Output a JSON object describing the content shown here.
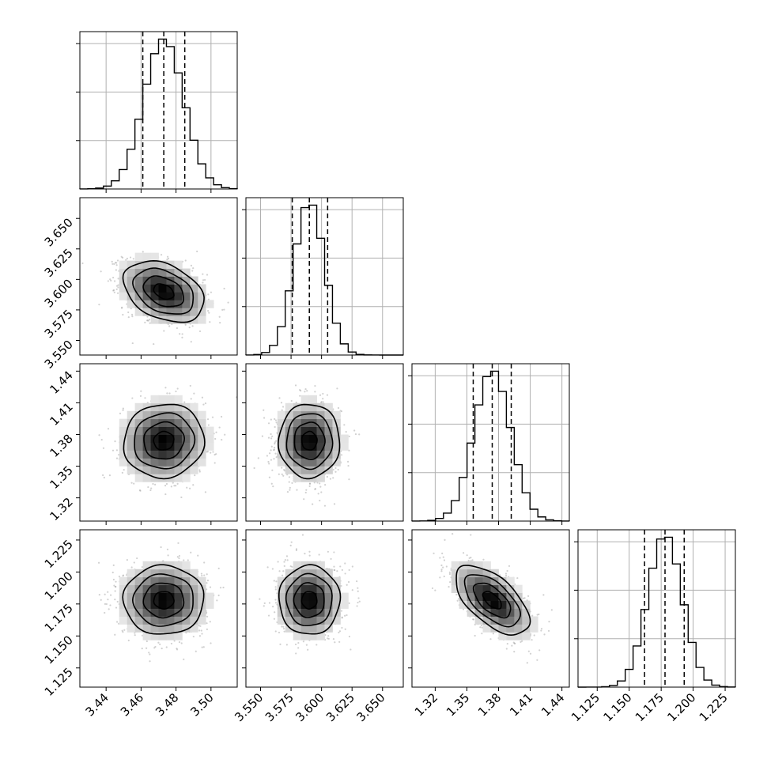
{
  "figure": {
    "type": "corner-plot",
    "background": "#ffffff"
  },
  "colors": {
    "frame": "#000000",
    "grid": "#b0b0b0",
    "hist": "#000000",
    "contour": "#000000",
    "scatter": "#9a9a9a",
    "quantile": "#000000"
  },
  "chart_data": {
    "type": "corner",
    "parameters": [
      {
        "name": "",
        "range": [
          3.425,
          3.515
        ],
        "ticks": [
          3.44,
          3.46,
          3.48,
          3.5
        ],
        "tick_labels": [
          "3.44",
          "3.46",
          "3.48",
          "3.50"
        ],
        "mean": 3.473,
        "sigma": 0.0115,
        "quantiles": [
          3.461,
          3.473,
          3.485
        ]
      },
      {
        "name": "",
        "range": [
          3.538,
          3.667
        ],
        "ticks": [
          3.55,
          3.575,
          3.6,
          3.625,
          3.65
        ],
        "tick_labels": [
          "3.550",
          "3.575",
          "3.600",
          "3.625",
          "3.650"
        ],
        "mean": 3.59,
        "sigma": 0.0125,
        "quantiles": [
          3.576,
          3.59,
          3.605
        ]
      },
      {
        "name": "",
        "range": [
          1.298,
          1.447
        ],
        "ticks": [
          1.32,
          1.35,
          1.38,
          1.41,
          1.44
        ],
        "tick_labels": [
          "1.32",
          "1.35",
          "1.38",
          "1.41",
          "1.44"
        ],
        "mean": 1.374,
        "sigma": 0.0175,
        "quantiles": [
          1.356,
          1.374,
          1.392
        ]
      },
      {
        "name": "",
        "range": [
          1.11,
          1.233
        ],
        "ticks": [
          1.125,
          1.15,
          1.175,
          1.2,
          1.225
        ],
        "tick_labels": [
          "1.125",
          "1.150",
          "1.175",
          "1.200",
          "1.225"
        ],
        "mean": 1.178,
        "sigma": 0.0135,
        "quantiles": [
          1.162,
          1.178,
          1.193
        ]
      }
    ],
    "correlations": [
      [
        0,
        1,
        -0.35
      ],
      [
        0,
        2,
        0.05
      ],
      [
        1,
        2,
        0.0
      ],
      [
        0,
        3,
        0.0
      ],
      [
        1,
        3,
        0.0
      ],
      [
        2,
        3,
        -0.6
      ]
    ],
    "histogram_bins": 20,
    "contour_levels_sigma": [
      0.5,
      1.0,
      1.5,
      2.0
    ],
    "quantile_lines": "dashed",
    "grid": true
  }
}
